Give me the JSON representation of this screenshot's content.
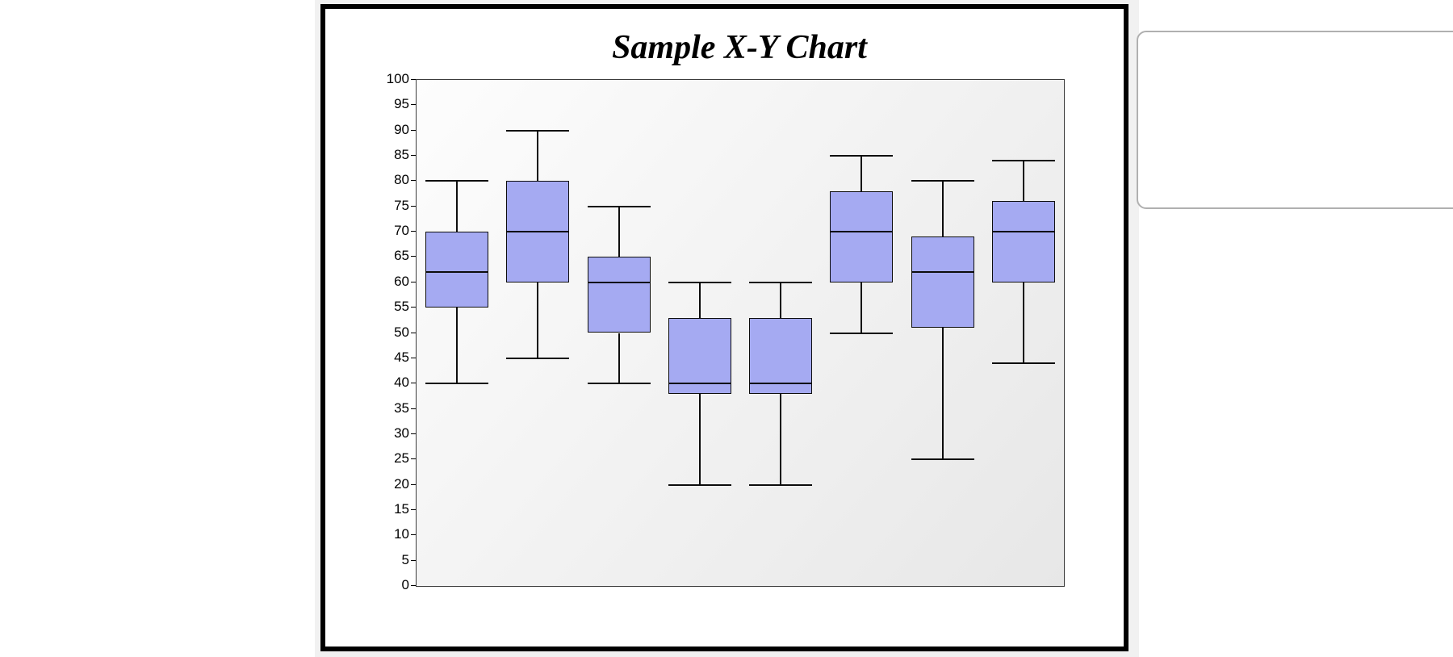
{
  "window": {
    "page_background": "#ffffff",
    "canvas_background": "#f1f1f1",
    "frame_border_color": "#000000",
    "frame_background": "#ffffff",
    "side_panel_border_color": "#b0b0b0",
    "side_panel_background": "#ffffff"
  },
  "chart_data": {
    "type": "box",
    "title": "Sample X-Y Chart",
    "xlabel": "",
    "ylabel": "",
    "ylim": [
      0,
      100
    ],
    "ytick_step": 5,
    "ytick_labels": [
      0,
      5,
      10,
      15,
      20,
      25,
      30,
      35,
      40,
      45,
      50,
      55,
      60,
      65,
      70,
      75,
      80,
      85,
      90,
      95,
      100
    ],
    "xtick_labels_visible": false,
    "grid": "off",
    "legend": "none",
    "boxes": [
      {
        "min": 40,
        "q1": 55,
        "median": 62,
        "q3": 70,
        "max": 80
      },
      {
        "min": 45,
        "q1": 60,
        "median": 70,
        "q3": 80,
        "max": 90
      },
      {
        "min": 40,
        "q1": 50,
        "median": 60,
        "q3": 65,
        "max": 75
      },
      {
        "min": 20,
        "q1": 38,
        "median": 40,
        "q3": 53,
        "max": 60
      },
      {
        "min": 20,
        "q1": 38,
        "median": 40,
        "q3": 53,
        "max": 60
      },
      {
        "min": 50,
        "q1": 60,
        "median": 70,
        "q3": 78,
        "max": 85
      },
      {
        "min": 25,
        "q1": 51,
        "median": 62,
        "q3": 69,
        "max": 80
      },
      {
        "min": 44,
        "q1": 60,
        "median": 70,
        "q3": 76,
        "max": 84
      }
    ],
    "colors": {
      "box_fill": "#a5aaf2",
      "box_border": "#0d0d0d",
      "median_line": "#0d0d0d",
      "whisker_line": "#0d0d0d",
      "axis_text": "#000000",
      "plot_bg_top_left": "#fdfdfd",
      "plot_bg_bottom_right": "#e7e7e7"
    }
  }
}
